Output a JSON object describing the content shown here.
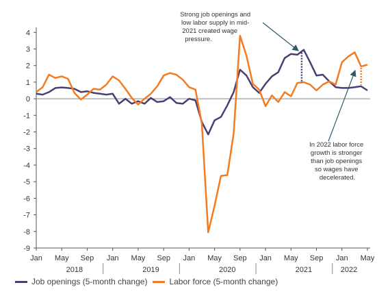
{
  "chart_data": {
    "type": "line",
    "x_months": [
      "2018-01",
      "2018-02",
      "2018-03",
      "2018-04",
      "2018-05",
      "2018-06",
      "2018-07",
      "2018-08",
      "2018-09",
      "2018-10",
      "2018-11",
      "2018-12",
      "2019-01",
      "2019-02",
      "2019-03",
      "2019-04",
      "2019-05",
      "2019-06",
      "2019-07",
      "2019-08",
      "2019-09",
      "2019-10",
      "2019-11",
      "2019-12",
      "2020-01",
      "2020-02",
      "2020-03",
      "2020-04",
      "2020-05",
      "2020-06",
      "2020-07",
      "2020-08",
      "2020-09",
      "2020-10",
      "2020-11",
      "2020-12",
      "2021-01",
      "2021-02",
      "2021-03",
      "2021-04",
      "2021-05",
      "2021-06",
      "2021-07",
      "2021-08",
      "2021-09",
      "2021-10",
      "2021-11",
      "2021-12",
      "2022-01",
      "2022-02",
      "2022-03",
      "2022-04",
      "2022-05"
    ],
    "series": [
      {
        "name": "Job openings (5-month change)",
        "color": "#4a3f73",
        "values": [
          0.3,
          0.25,
          0.4,
          0.65,
          0.68,
          0.65,
          0.6,
          0.4,
          0.45,
          0.35,
          0.3,
          0.25,
          0.3,
          -0.3,
          0.0,
          -0.3,
          -0.15,
          -0.3,
          0.05,
          -0.2,
          -0.15,
          0.1,
          -0.25,
          -0.3,
          0.0,
          -0.1,
          -1.4,
          -2.15,
          -1.3,
          -1.1,
          -0.4,
          0.4,
          1.75,
          1.4,
          0.7,
          0.35,
          0.9,
          1.35,
          1.6,
          2.45,
          2.7,
          2.65,
          2.95,
          2.2,
          1.4,
          1.45,
          1.05,
          0.7,
          0.65,
          0.65,
          0.7,
          0.75,
          0.5
        ]
      },
      {
        "name": "Labor force (5-month change)",
        "color": "#f47b20",
        "values": [
          0.4,
          0.7,
          1.45,
          1.25,
          1.35,
          1.2,
          0.35,
          -0.05,
          0.25,
          0.6,
          0.55,
          0.85,
          1.35,
          1.1,
          0.6,
          0.05,
          -0.35,
          0.0,
          0.3,
          0.75,
          1.4,
          1.55,
          1.45,
          1.15,
          0.7,
          0.55,
          -1.5,
          -8.05,
          -6.45,
          -4.65,
          -4.6,
          -2.1,
          3.8,
          2.6,
          0.9,
          0.55,
          -0.45,
          0.2,
          -0.2,
          0.4,
          0.15,
          0.95,
          1.0,
          0.85,
          0.5,
          0.85,
          1.05,
          0.85,
          2.2,
          2.55,
          2.8,
          1.95,
          2.05
        ]
      }
    ],
    "x_tick_labels": [
      "Jan",
      "May",
      "Sep",
      "Jan",
      "May",
      "Sep",
      "Jan",
      "May",
      "Sep",
      "Jan",
      "May",
      "Sep",
      "Jan",
      "May"
    ],
    "year_labels": [
      "2018",
      "2019",
      "2020",
      "2021",
      "2022"
    ],
    "y_ticks": [
      4,
      3,
      2,
      1,
      0,
      -1,
      -2,
      -3,
      -4,
      -5,
      -6,
      -7,
      -8,
      -9
    ],
    "ylim": [
      -9,
      4.3
    ],
    "xlim": [
      "2018-01",
      "2022-05"
    ],
    "grid": false,
    "legend_position": "bottom-left",
    "annotations": [
      {
        "text": "Strong job openings and low labor supply in mid-2021 created wage pressure.",
        "month": "2021-07",
        "range": [
          0.95,
          2.95
        ]
      },
      {
        "text": "In 2022 labor force growth is stronger than job openings so wages have decelerated.",
        "month": "2022-04",
        "range": [
          0.75,
          1.95
        ]
      }
    ]
  },
  "ann1_lines": [
    "Strong job openings and",
    "low labor supply in mid-",
    "2021 created wage",
    "pressure."
  ],
  "ann2_lines": [
    "In 2022 labor force",
    "growth is stronger",
    "than job openings",
    "so wages have",
    "decelerated."
  ]
}
